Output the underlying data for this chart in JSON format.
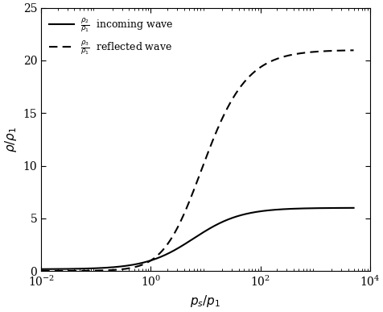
{
  "gamma": 1.4,
  "ps_p1_min": 0.01,
  "ps_p1_max": 5000,
  "xlim": [
    0.01,
    10000
  ],
  "ylim": [
    0,
    25
  ],
  "xlabel": "$p_s/p_1$",
  "ylabel": "$\\rho/\\rho_1$",
  "yticks": [
    0,
    5,
    10,
    15,
    20,
    25
  ],
  "xticks": [
    0.01,
    1.0,
    100.0,
    10000.0
  ],
  "line_color": "#000000",
  "background_color": "#ffffff",
  "linewidth": 1.5,
  "figsize": [
    4.77,
    3.87
  ],
  "dpi": 100
}
